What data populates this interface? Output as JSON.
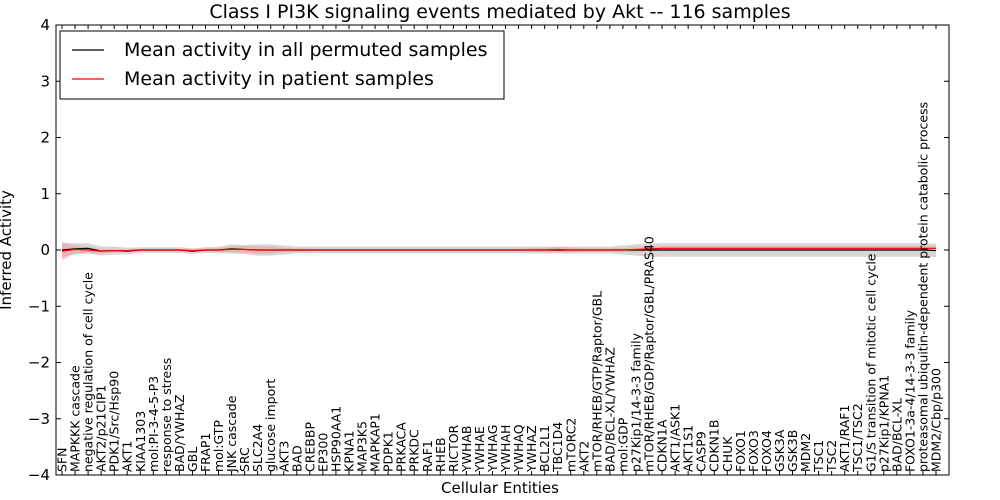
{
  "chart_data": {
    "type": "line",
    "title": "Class I PI3K signaling events mediated by Akt -- 116 samples",
    "xlabel": "Cellular Entities",
    "ylabel": "Inferred Activity",
    "ylim": [
      -4,
      4
    ],
    "yticks": [
      4,
      3,
      2,
      1,
      0,
      -1,
      -2,
      -3,
      -4
    ],
    "ytick_labels": [
      "4",
      "3",
      "2",
      "1",
      "0",
      "−1",
      "−2",
      "−3",
      "−4"
    ],
    "legend": {
      "position": "top-left",
      "entries": [
        {
          "label": "Mean activity in all permuted samples",
          "color": "#000000"
        },
        {
          "label": "Mean activity in patient samples",
          "color": "#ff0000"
        }
      ]
    },
    "categories": [
      "SFN",
      "MAPKKK cascade",
      "negative regulation of cell cycle",
      "AKT2/p21CIP1",
      "PDK1/Src/Hsp90",
      "AKT1",
      "KIAA1303",
      "mol:PI-3-4-5-P3",
      "response to stress",
      "BAD/YWHAZ",
      "GBL",
      "FRAP1",
      "mol:GTP",
      "JNK cascade",
      "SRC",
      "SLC2A4",
      "glucose import",
      "AKT3",
      "BAD",
      "CREBBP",
      "EP300",
      "HSP90AA1",
      "KPNA1",
      "MAP3K5",
      "MAPKAP1",
      "PDPK1",
      "PRKACA",
      "PRKDC",
      "RAF1",
      "RHEB",
      "RICTOR",
      "YWHAB",
      "YWHAE",
      "YWHAG",
      "YWHAH",
      "YWHAQ",
      "YWHAZ",
      "BCL2L1",
      "TBC1D4",
      "mTORC2",
      "AKT2",
      "mTOR/RHEB/GTP/Raptor/GBL",
      "BAD/BCL-XL/YWHAZ",
      "mol:GDP",
      "p27Kip1/14-3-3 family",
      "mTOR/RHEB/GDP/Raptor/GBL/PRAS40",
      "CDKN1A",
      "AKT1/ASK1",
      "AKT1S1",
      "CASP9",
      "CDKN1B",
      "CHUK",
      "FOXO1",
      "FOXO3",
      "FOXO4",
      "GSK3A",
      "GSK3B",
      "MDM2",
      "TSC1",
      "TSC2",
      "AKT1/RAF1",
      "TSC1/TSC2",
      "G1/S transition of mitotic cell cycle",
      "p27Kip1/KPNA1",
      "BAD/BCL-XL",
      "FOXO1-3a-4/14-3-3 family",
      "proteasomal ubiquitin-dependent protein catabolic process",
      "MDM2/Cbp/p300"
    ],
    "series": [
      {
        "name": "Mean activity in all permuted samples",
        "color": "#000000",
        "band_color": "#c8c8c8",
        "values": [
          0.0,
          0.02,
          0.03,
          -0.02,
          -0.01,
          -0.02,
          0.0,
          0.0,
          0.0,
          0.0,
          -0.02,
          0.0,
          0.0,
          0.02,
          0.01,
          0.0,
          0.0,
          0.0,
          0.0,
          0.0,
          0.0,
          0.0,
          0.0,
          0.0,
          0.0,
          0.0,
          0.0,
          0.0,
          0.0,
          0.0,
          0.0,
          0.0,
          0.0,
          0.0,
          0.0,
          0.0,
          0.0,
          0.0,
          0.0,
          0.0,
          0.0,
          0.0,
          0.0,
          0.0,
          0.0,
          0.0,
          0.0,
          0.0,
          0.0,
          0.0,
          0.0,
          0.0,
          0.0,
          0.0,
          0.0,
          0.0,
          0.0,
          0.0,
          0.0,
          0.0,
          0.0,
          0.0,
          0.0,
          0.0,
          0.0,
          0.0,
          0.0,
          -0.01
        ],
        "band": [
          0.12,
          0.1,
          0.09,
          0.08,
          0.07,
          0.06,
          0.05,
          0.05,
          0.05,
          0.05,
          0.05,
          0.05,
          0.06,
          0.08,
          0.08,
          0.1,
          0.1,
          0.08,
          0.06,
          0.06,
          0.06,
          0.06,
          0.06,
          0.06,
          0.06,
          0.06,
          0.06,
          0.06,
          0.06,
          0.06,
          0.06,
          0.06,
          0.06,
          0.06,
          0.06,
          0.06,
          0.06,
          0.06,
          0.06,
          0.06,
          0.06,
          0.06,
          0.06,
          0.08,
          0.1,
          0.12,
          0.12,
          0.12,
          0.12,
          0.12,
          0.12,
          0.12,
          0.12,
          0.12,
          0.12,
          0.12,
          0.12,
          0.12,
          0.12,
          0.12,
          0.12,
          0.12,
          0.12,
          0.12,
          0.12,
          0.12,
          0.12,
          0.12
        ]
      },
      {
        "name": "Mean activity in patient samples",
        "color": "#ff0000",
        "band_color": "#f4a0a0",
        "values": [
          -0.02,
          0.01,
          0.0,
          -0.02,
          -0.01,
          -0.01,
          0.0,
          0.0,
          0.0,
          0.0,
          -0.01,
          0.0,
          0.0,
          0.01,
          0.01,
          0.0,
          0.0,
          0.0,
          0.0,
          0.0,
          0.0,
          0.0,
          0.0,
          0.0,
          0.0,
          0.0,
          0.0,
          0.0,
          0.0,
          0.0,
          0.0,
          0.0,
          0.0,
          0.0,
          0.0,
          0.0,
          0.0,
          0.0,
          0.01,
          0.0,
          0.0,
          0.0,
          0.0,
          0.0,
          0.01,
          0.02,
          0.03,
          0.03,
          0.03,
          0.03,
          0.03,
          0.03,
          0.03,
          0.03,
          0.03,
          0.03,
          0.03,
          0.03,
          0.03,
          0.03,
          0.03,
          0.03,
          0.03,
          0.03,
          0.03,
          0.03,
          0.03,
          0.03
        ],
        "band": [
          0.16,
          0.07,
          0.05,
          0.04,
          0.03,
          0.02,
          0.02,
          0.02,
          0.02,
          0.02,
          0.02,
          0.02,
          0.03,
          0.05,
          0.06,
          0.07,
          0.06,
          0.04,
          0.03,
          0.02,
          0.02,
          0.02,
          0.02,
          0.02,
          0.02,
          0.02,
          0.02,
          0.02,
          0.02,
          0.02,
          0.02,
          0.02,
          0.02,
          0.02,
          0.02,
          0.02,
          0.03,
          0.04,
          0.05,
          0.04,
          0.03,
          0.03,
          0.03,
          0.03,
          0.04,
          0.04,
          0.04,
          0.04,
          0.04,
          0.04,
          0.04,
          0.04,
          0.04,
          0.04,
          0.04,
          0.04,
          0.04,
          0.04,
          0.04,
          0.04,
          0.04,
          0.04,
          0.04,
          0.04,
          0.04,
          0.04,
          0.04,
          0.04
        ]
      }
    ]
  }
}
